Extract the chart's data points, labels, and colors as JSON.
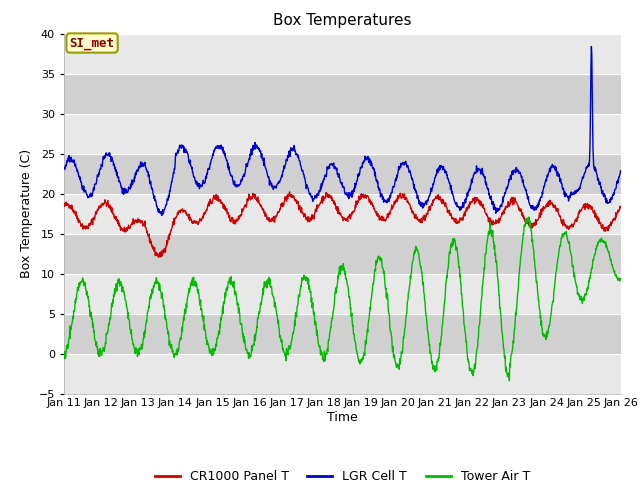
{
  "title": "Box Temperatures",
  "xlabel": "Time",
  "ylabel": "Box Temperature (C)",
  "ylim": [
    -5,
    40
  ],
  "yticks": [
    -5,
    0,
    5,
    10,
    15,
    20,
    25,
    30,
    35,
    40
  ],
  "x_tick_labels": [
    "Jan 11",
    "Jan 12",
    "Jan 13",
    "Jan 14",
    "Jan 15",
    "Jan 16",
    "Jan 17",
    "Jan 18",
    "Jan 19",
    "Jan 20",
    "Jan 21",
    "Jan 22",
    "Jan 23",
    "Jan 24",
    "Jan 25",
    "Jan 26"
  ],
  "colors": {
    "cr1000": "#cc0000",
    "lgr": "#0000cc",
    "tower": "#00bb00",
    "background": "#ffffff",
    "plot_bg": "#ffffff",
    "band_light": "#e8e8e8",
    "band_dark": "#d0d0d0",
    "label_box_bg": "#ffffcc",
    "label_box_border": "#999900",
    "label_text": "#880000",
    "grid_line": "#cccccc"
  },
  "watermark": "SI_met",
  "legend": [
    "CR1000 Panel T",
    "LGR Cell T",
    "Tower Air T"
  ],
  "figsize": [
    6.4,
    4.8
  ],
  "dpi": 100
}
